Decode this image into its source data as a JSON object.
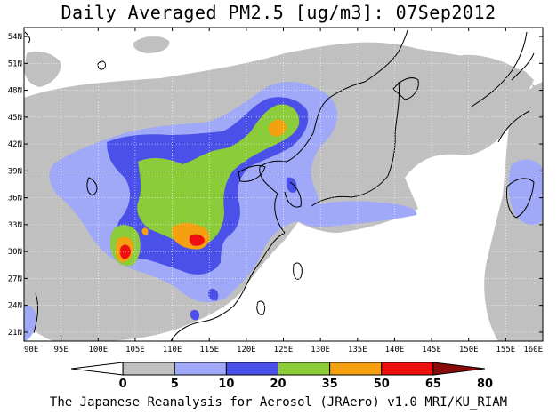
{
  "title": "Daily Averaged PM2.5 [ug/m3]: 07Sep2012",
  "footer": "The Japanese Reanalysis for Aerosol (JRAero) v1.0 MRI/KU_RIAM",
  "map": {
    "lat_labels": [
      "54N",
      "51N",
      "48N",
      "45N",
      "42N",
      "39N",
      "36N",
      "33N",
      "30N",
      "27N",
      "24N",
      "21N"
    ],
    "lon_labels": [
      "90E",
      "95E",
      "100E",
      "105E",
      "110E",
      "115E",
      "120E",
      "125E",
      "130E",
      "135E",
      "140E",
      "145E",
      "150E",
      "155E",
      "160E"
    ]
  },
  "colorbar": {
    "levels": [
      "0",
      "5",
      "10",
      "20",
      "35",
      "50",
      "65",
      "80"
    ],
    "colors": [
      "#ffffff",
      "#c0c0c0",
      "#a0a8f8",
      "#4a50e8",
      "#8ccc3a",
      "#f5a010",
      "#ee1010",
      "#8a0a0a"
    ]
  }
}
